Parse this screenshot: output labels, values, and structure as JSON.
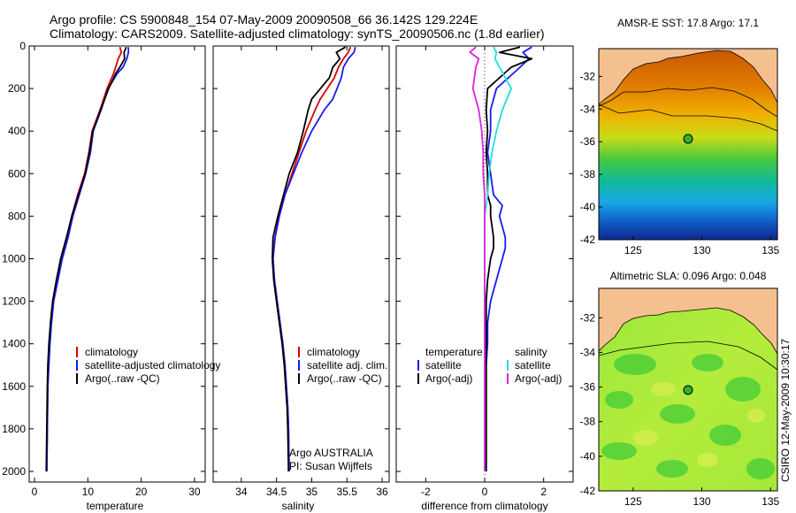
{
  "header": {
    "title_line1": "Argo profile: CS 5900848_154 07-May-2009 20090508_66 36.142S 129.224E",
    "title_line2": "Climatology: CARS2009. Satellite-adjusted climatology: synTS_20090506.nc (1.8d earlier)"
  },
  "colors": {
    "climatology": "#dd0000",
    "satellite": "#1a1aee",
    "argo": "#000000",
    "satellite_salinity": "#22dddd",
    "argo_salinity": "#dd22dd",
    "land": "#f5c08f"
  },
  "side_label": "CSIRO 12-May-2009 10:30:17",
  "chart_data": [
    {
      "type": "line",
      "panel": "temperature",
      "xlabel": "temperature",
      "ylabel": "",
      "xlim": [
        -1,
        32
      ],
      "ylim": [
        2050,
        0
      ],
      "xticks": [
        "0",
        "10",
        "20",
        "30"
      ],
      "yticks": [
        "0",
        "200",
        "400",
        "600",
        "800",
        "1000",
        "1200",
        "1400",
        "1600",
        "1800",
        "2000"
      ],
      "legend": [
        "climatology",
        "satellite-adjusted climatology",
        "Argo(..raw -QC)"
      ],
      "legend_position": "lower-right",
      "series": [
        {
          "name": "climatology",
          "color": "#dd0000",
          "x": [
            16.0,
            16.3,
            15.7,
            15.2,
            14.8,
            13.6,
            12.3,
            10.8,
            10.2,
            9.4,
            8.1,
            7.0,
            6.1,
            5.0,
            4.2,
            3.5,
            3.1,
            2.8,
            2.6,
            2.5,
            2.4,
            2.3
          ],
          "y": [
            5,
            30,
            60,
            100,
            130,
            200,
            300,
            400,
            500,
            600,
            700,
            800,
            900,
            1000,
            1100,
            1200,
            1300,
            1400,
            1500,
            1600,
            1800,
            2000
          ]
        },
        {
          "name": "satellite-adjusted climatology",
          "color": "#1a1aee",
          "x": [
            17.6,
            17.6,
            17.3,
            16.6,
            15.5,
            13.8,
            12.5,
            11.0,
            10.5,
            9.6,
            8.4,
            7.2,
            6.3,
            5.2,
            4.4,
            3.6,
            3.2,
            2.9,
            2.7,
            2.5,
            2.4,
            2.3
          ],
          "y": [
            5,
            30,
            60,
            100,
            130,
            200,
            300,
            400,
            500,
            600,
            700,
            800,
            900,
            1000,
            1100,
            1200,
            1300,
            1400,
            1500,
            1600,
            1800,
            2000
          ]
        },
        {
          "name": "Argo(..raw -QC)",
          "color": "#000000",
          "x": [
            17.2,
            16.8,
            16.9,
            16.0,
            15.2,
            13.9,
            12.4,
            10.9,
            10.3,
            9.5,
            8.2,
            7.0,
            6.0,
            4.9,
            4.1,
            3.4,
            3.0,
            2.7,
            2.5,
            2.4,
            2.3,
            2.2
          ],
          "y": [
            5,
            30,
            60,
            100,
            130,
            200,
            300,
            400,
            500,
            600,
            700,
            800,
            900,
            1000,
            1100,
            1200,
            1300,
            1400,
            1500,
            1600,
            1800,
            2000
          ]
        }
      ]
    },
    {
      "type": "line",
      "panel": "salinity",
      "xlabel": "salinity",
      "xlim": [
        33.6,
        36.1
      ],
      "ylim": [
        2050,
        0
      ],
      "xticks": [
        "34",
        "34.5",
        "35",
        "35.5",
        "36"
      ],
      "legend": [
        "climatology",
        "satellite adj. clim.",
        "Argo(..raw -QC)"
      ],
      "legend_position": "lower-right",
      "annotation": [
        "Argo AUSTRALIA",
        "PI: Susan Wijffels"
      ],
      "series": [
        {
          "name": "climatology",
          "color": "#dd0000",
          "x": [
            35.55,
            35.52,
            35.45,
            35.38,
            35.32,
            35.12,
            35.05,
            34.92,
            34.82,
            34.72,
            34.62,
            34.54,
            34.48,
            34.45,
            34.47,
            34.51,
            34.55,
            34.59,
            34.62,
            34.64,
            34.66,
            34.67,
            34.68
          ],
          "y": [
            5,
            30,
            60,
            100,
            150,
            250,
            300,
            400,
            500,
            600,
            700,
            800,
            900,
            1000,
            1100,
            1200,
            1300,
            1400,
            1500,
            1600,
            1700,
            1800,
            2000
          ]
        },
        {
          "name": "satellite adj. clim.",
          "color": "#1a1aee",
          "x": [
            35.62,
            35.6,
            35.52,
            35.45,
            35.42,
            35.3,
            35.18,
            35.0,
            34.86,
            34.74,
            34.62,
            34.54,
            34.48,
            34.45,
            34.47,
            34.51,
            34.55,
            34.59,
            34.62,
            34.64,
            34.66,
            34.67,
            34.68
          ],
          "y": [
            5,
            30,
            60,
            100,
            150,
            250,
            300,
            400,
            500,
            600,
            700,
            800,
            900,
            1000,
            1100,
            1200,
            1300,
            1400,
            1500,
            1600,
            1700,
            1800,
            2000
          ]
        },
        {
          "name": "Argo(..raw -QC)",
          "color": "#000000",
          "x": [
            35.48,
            35.35,
            35.4,
            35.3,
            35.25,
            35.0,
            34.95,
            34.88,
            34.8,
            34.68,
            34.6,
            34.52,
            34.45,
            34.44,
            34.46,
            34.5,
            34.54,
            34.58,
            34.61,
            34.63,
            34.65,
            34.66,
            34.67
          ],
          "y": [
            5,
            30,
            60,
            100,
            150,
            250,
            300,
            400,
            500,
            600,
            700,
            800,
            900,
            1000,
            1100,
            1200,
            1300,
            1400,
            1500,
            1600,
            1700,
            1800,
            2000
          ]
        }
      ]
    },
    {
      "type": "line",
      "panel": "difference",
      "xlabel": "difference from climatology",
      "xlim": [
        -3,
        3
      ],
      "ylim": [
        2050,
        0
      ],
      "xticks": [
        "-2",
        "0",
        "2"
      ],
      "legend_groups": [
        {
          "title": "temperature",
          "entries": [
            "satellite",
            "Argo(-adj)"
          ]
        },
        {
          "title": "salinity",
          "entries": [
            "satellite",
            "Argo(-adj)"
          ]
        }
      ],
      "legend_position": "lower",
      "series": [
        {
          "name": "temperature satellite",
          "color": "#1a1aee",
          "x": [
            1.6,
            1.3,
            1.5,
            1.2,
            0.4,
            0.2,
            0.2,
            0.1,
            0.2,
            0.3,
            0.6,
            0.5,
            0.7,
            0.7,
            0.6,
            0.4,
            0.2,
            0.1,
            0.1,
            0.05,
            0.05,
            0.05,
            0.05
          ],
          "y": [
            5,
            30,
            60,
            100,
            200,
            300,
            400,
            500,
            600,
            700,
            750,
            800,
            900,
            950,
            1000,
            1100,
            1200,
            1300,
            1400,
            1500,
            1600,
            1800,
            2000
          ]
        },
        {
          "name": "temperature Argo(-adj)",
          "color": "#000000",
          "x": [
            1.2,
            0.5,
            1.6,
            0.9,
            0.1,
            0.05,
            0.1,
            0.05,
            0.1,
            0.1,
            0.2,
            0.2,
            0.3,
            0.3,
            0.2,
            0.1,
            0.05,
            0.05,
            0.05,
            0.05,
            0.05,
            0.05,
            0.05
          ],
          "y": [
            5,
            30,
            60,
            100,
            200,
            300,
            400,
            500,
            600,
            700,
            750,
            800,
            900,
            950,
            1000,
            1100,
            1200,
            1300,
            1400,
            1500,
            1600,
            1800,
            2000
          ]
        },
        {
          "name": "salinity satellite",
          "color": "#22dddd",
          "x": [
            0.3,
            0.4,
            0.35,
            0.5,
            0.9,
            0.6,
            0.4,
            0.25,
            0.15,
            0.1,
            0.05,
            0.0,
            0.0,
            0.0,
            0.0,
            0.0,
            0.0,
            0.0,
            0.0,
            0.0,
            0.0,
            0.0,
            0.0
          ],
          "y": [
            5,
            30,
            60,
            100,
            200,
            300,
            400,
            500,
            600,
            700,
            750,
            800,
            900,
            950,
            1000,
            1100,
            1200,
            1300,
            1400,
            1500,
            1600,
            1800,
            2000
          ]
        },
        {
          "name": "salinity Argo(-adj)",
          "color": "#dd22dd",
          "x": [
            -0.3,
            -0.5,
            -0.2,
            -0.3,
            -0.4,
            -0.2,
            -0.1,
            -0.05,
            -0.05,
            0.0,
            0.0,
            0.0,
            0.0,
            0.0,
            0.0,
            0.0,
            0.0,
            0.0,
            0.0,
            0.0,
            0.0,
            0.0,
            0.0
          ],
          "y": [
            5,
            30,
            60,
            100,
            200,
            300,
            400,
            500,
            600,
            700,
            750,
            800,
            900,
            950,
            1000,
            1100,
            1200,
            1300,
            1400,
            1500,
            1600,
            1800,
            2000
          ]
        }
      ]
    },
    {
      "type": "heatmap",
      "panel": "map-sst",
      "title": "AMSR-E SST: 17.8 Argo: 17.1",
      "xlim": [
        122.5,
        135.5
      ],
      "ylim": [
        -42,
        -30.3
      ],
      "xticks": [
        "125",
        "130",
        "135"
      ],
      "yticks": [
        "-32",
        "-34",
        "-36",
        "-38",
        "-40",
        "-42"
      ],
      "marker": {
        "lon": 129.224,
        "lat": -36.142
      }
    },
    {
      "type": "heatmap",
      "panel": "map-sla",
      "title": "Altimetric SLA: 0.096 Argo: 0.048",
      "xlim": [
        122.5,
        135.5
      ],
      "ylim": [
        -42,
        -30.3
      ],
      "xticks": [
        "125",
        "130",
        "135"
      ],
      "yticks": [
        "-32",
        "-34",
        "-36",
        "-38",
        "-40",
        "-42"
      ],
      "marker": {
        "lon": 129.224,
        "lat": -36.142
      }
    }
  ]
}
